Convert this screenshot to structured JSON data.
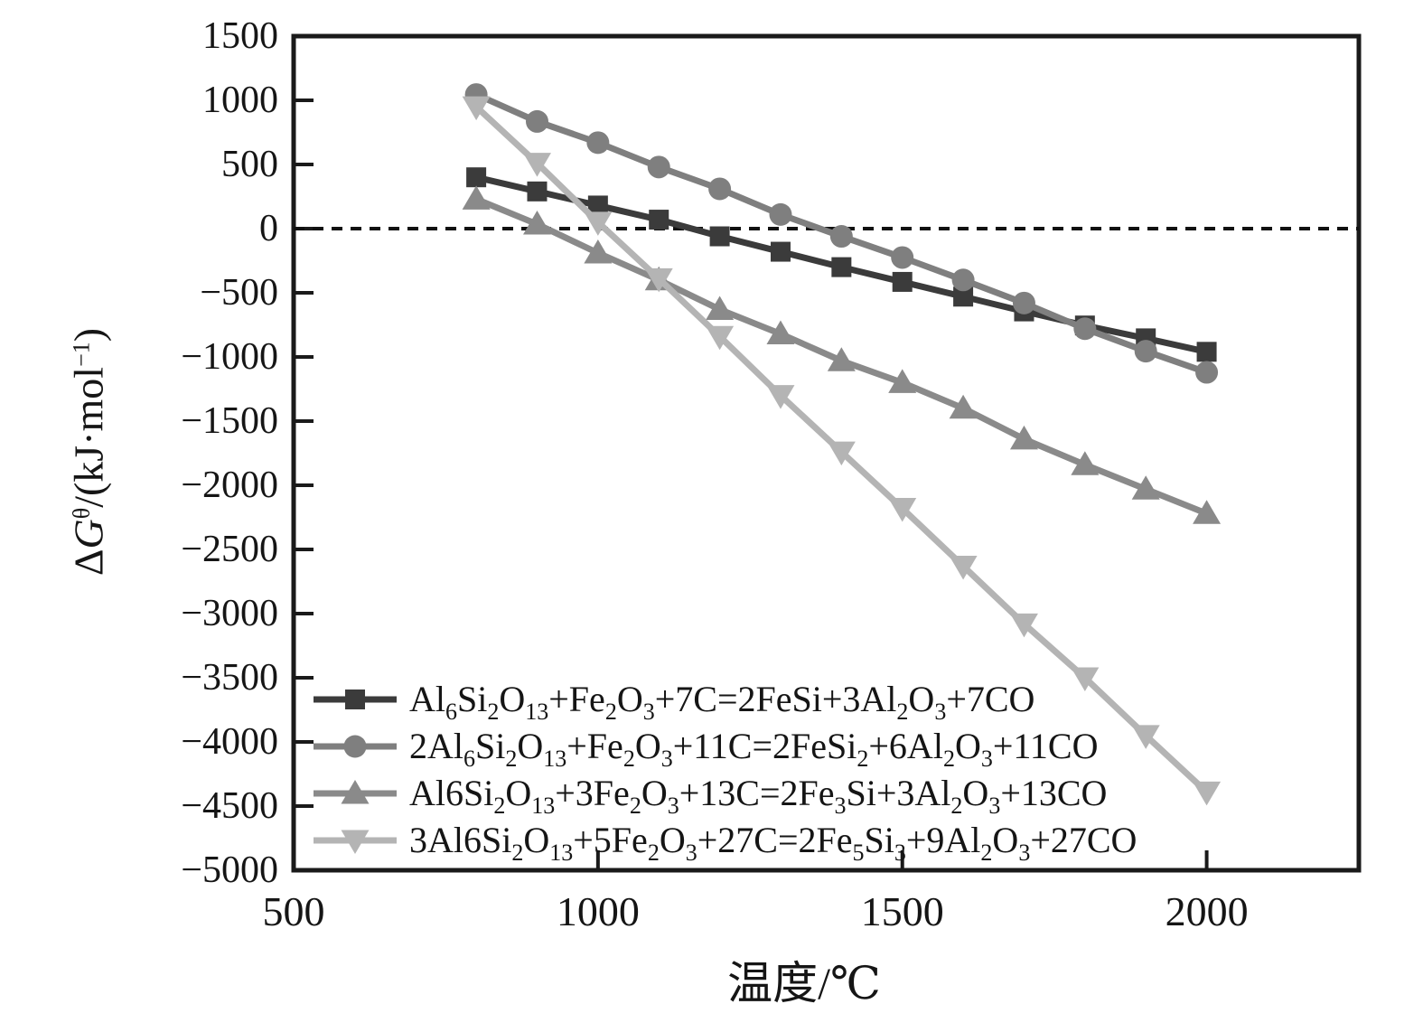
{
  "chart_data": {
    "type": "line",
    "title": "",
    "xlabel": "温度/℃",
    "ylabel": "ΔGθ/(kJ·mol−1)",
    "ylabel_segments": [
      "Δ",
      [
        "i",
        "G"
      ],
      [
        "sup",
        "θ"
      ],
      "/(kJ·mol",
      [
        "sup",
        "−1"
      ],
      ")"
    ],
    "xlim": [
      500,
      2250
    ],
    "ylim": [
      -5000,
      1500
    ],
    "x_ticks": [
      500,
      1000,
      1500,
      2000
    ],
    "y_ticks": [
      1500,
      1000,
      500,
      0,
      -500,
      -1000,
      -1500,
      -2000,
      -2500,
      -3000,
      -3500,
      -4000,
      -4500,
      -5000
    ],
    "grid": false,
    "zero_line": {
      "value": 0,
      "style": "dashed",
      "color": "#111111"
    },
    "axis_color": "#1a1a1a",
    "legend_position": "lower-left",
    "x": [
      800,
      900,
      1000,
      1100,
      1200,
      1300,
      1400,
      1500,
      1600,
      1700,
      1800,
      1900,
      2000
    ],
    "series": [
      {
        "name": "Al₆Si₂O₁₃+Fe₂O₃+7C=2FeSi+3Al₂O₃+7CO",
        "label_segments": [
          "Al",
          [
            "sub",
            "6"
          ],
          "Si",
          [
            "sub",
            "2"
          ],
          "O",
          [
            "sub",
            "13"
          ],
          "+Fe",
          [
            "sub",
            "2"
          ],
          "O",
          [
            "sub",
            "3"
          ],
          "+7C=2FeSi+3Al",
          [
            "sub",
            "2"
          ],
          "O",
          [
            "sub",
            "3"
          ],
          "+7CO"
        ],
        "marker": "square",
        "color": "#3b3b3b",
        "values": [
          400,
          290,
          180,
          70,
          -60,
          -180,
          -300,
          -415,
          -530,
          -645,
          -755,
          -855,
          -960
        ]
      },
      {
        "name": "2Al₆Si₂O₁₃+Fe₂O₃+11C=2FeSi₂+6Al₂O₃+11CO",
        "label_segments": [
          "2Al",
          [
            "sub",
            "6"
          ],
          "Si",
          [
            "sub",
            "2"
          ],
          "O",
          [
            "sub",
            "13"
          ],
          "+Fe",
          [
            "sub",
            "2"
          ],
          "O",
          [
            "sub",
            "3"
          ],
          "+11C=2FeSi",
          [
            "sub",
            "2"
          ],
          "+6Al",
          [
            "sub",
            "2"
          ],
          "O",
          [
            "sub",
            "3"
          ],
          "+11CO"
        ],
        "marker": "circle",
        "color": "#7f7f7f",
        "values": [
          1045,
          835,
          670,
          480,
          310,
          110,
          -60,
          -225,
          -400,
          -580,
          -780,
          -955,
          -1120
        ]
      },
      {
        "name": "Al6Si₂O₁₃+3Fe₂O₃+13C=2Fe₃Si+3Al₂O₃+13CO",
        "label_segments": [
          "Al6Si",
          [
            "sub",
            "2"
          ],
          "O",
          [
            "sub",
            "13"
          ],
          "+3Fe",
          [
            "sub",
            "2"
          ],
          "O",
          [
            "sub",
            "3"
          ],
          "+13C=2Fe",
          [
            "sub",
            "3"
          ],
          "Si+3Al",
          [
            "sub",
            "2"
          ],
          "O",
          [
            "sub",
            "3"
          ],
          "+13CO"
        ],
        "marker": "triangle-up",
        "color": "#8a8a8a",
        "values": [
          230,
          35,
          -190,
          -400,
          -630,
          -820,
          -1030,
          -1200,
          -1400,
          -1640,
          -1840,
          -2030,
          -2220
        ]
      },
      {
        "name": "3Al6Si₂O₁₃+5Fe₂O₃+27C=2Fe₅Si₃+9Al₂O₃+27CO",
        "label_segments": [
          "3Al6Si",
          [
            "sub",
            "2"
          ],
          "O",
          [
            "sub",
            "13"
          ],
          "+5Fe",
          [
            "sub",
            "2"
          ],
          "O",
          [
            "sub",
            "3"
          ],
          "+27C=2Fe",
          [
            "sub",
            "5"
          ],
          "Si",
          [
            "sub",
            "3"
          ],
          "+9Al",
          [
            "sub",
            "2"
          ],
          "O",
          [
            "sub",
            "3"
          ],
          "+27CO"
        ],
        "marker": "triangle-down",
        "color": "#b4b4b4",
        "values": [
          950,
          510,
          50,
          -390,
          -840,
          -1300,
          -1740,
          -2180,
          -2630,
          -3080,
          -3500,
          -3950,
          -4390
        ]
      }
    ]
  }
}
